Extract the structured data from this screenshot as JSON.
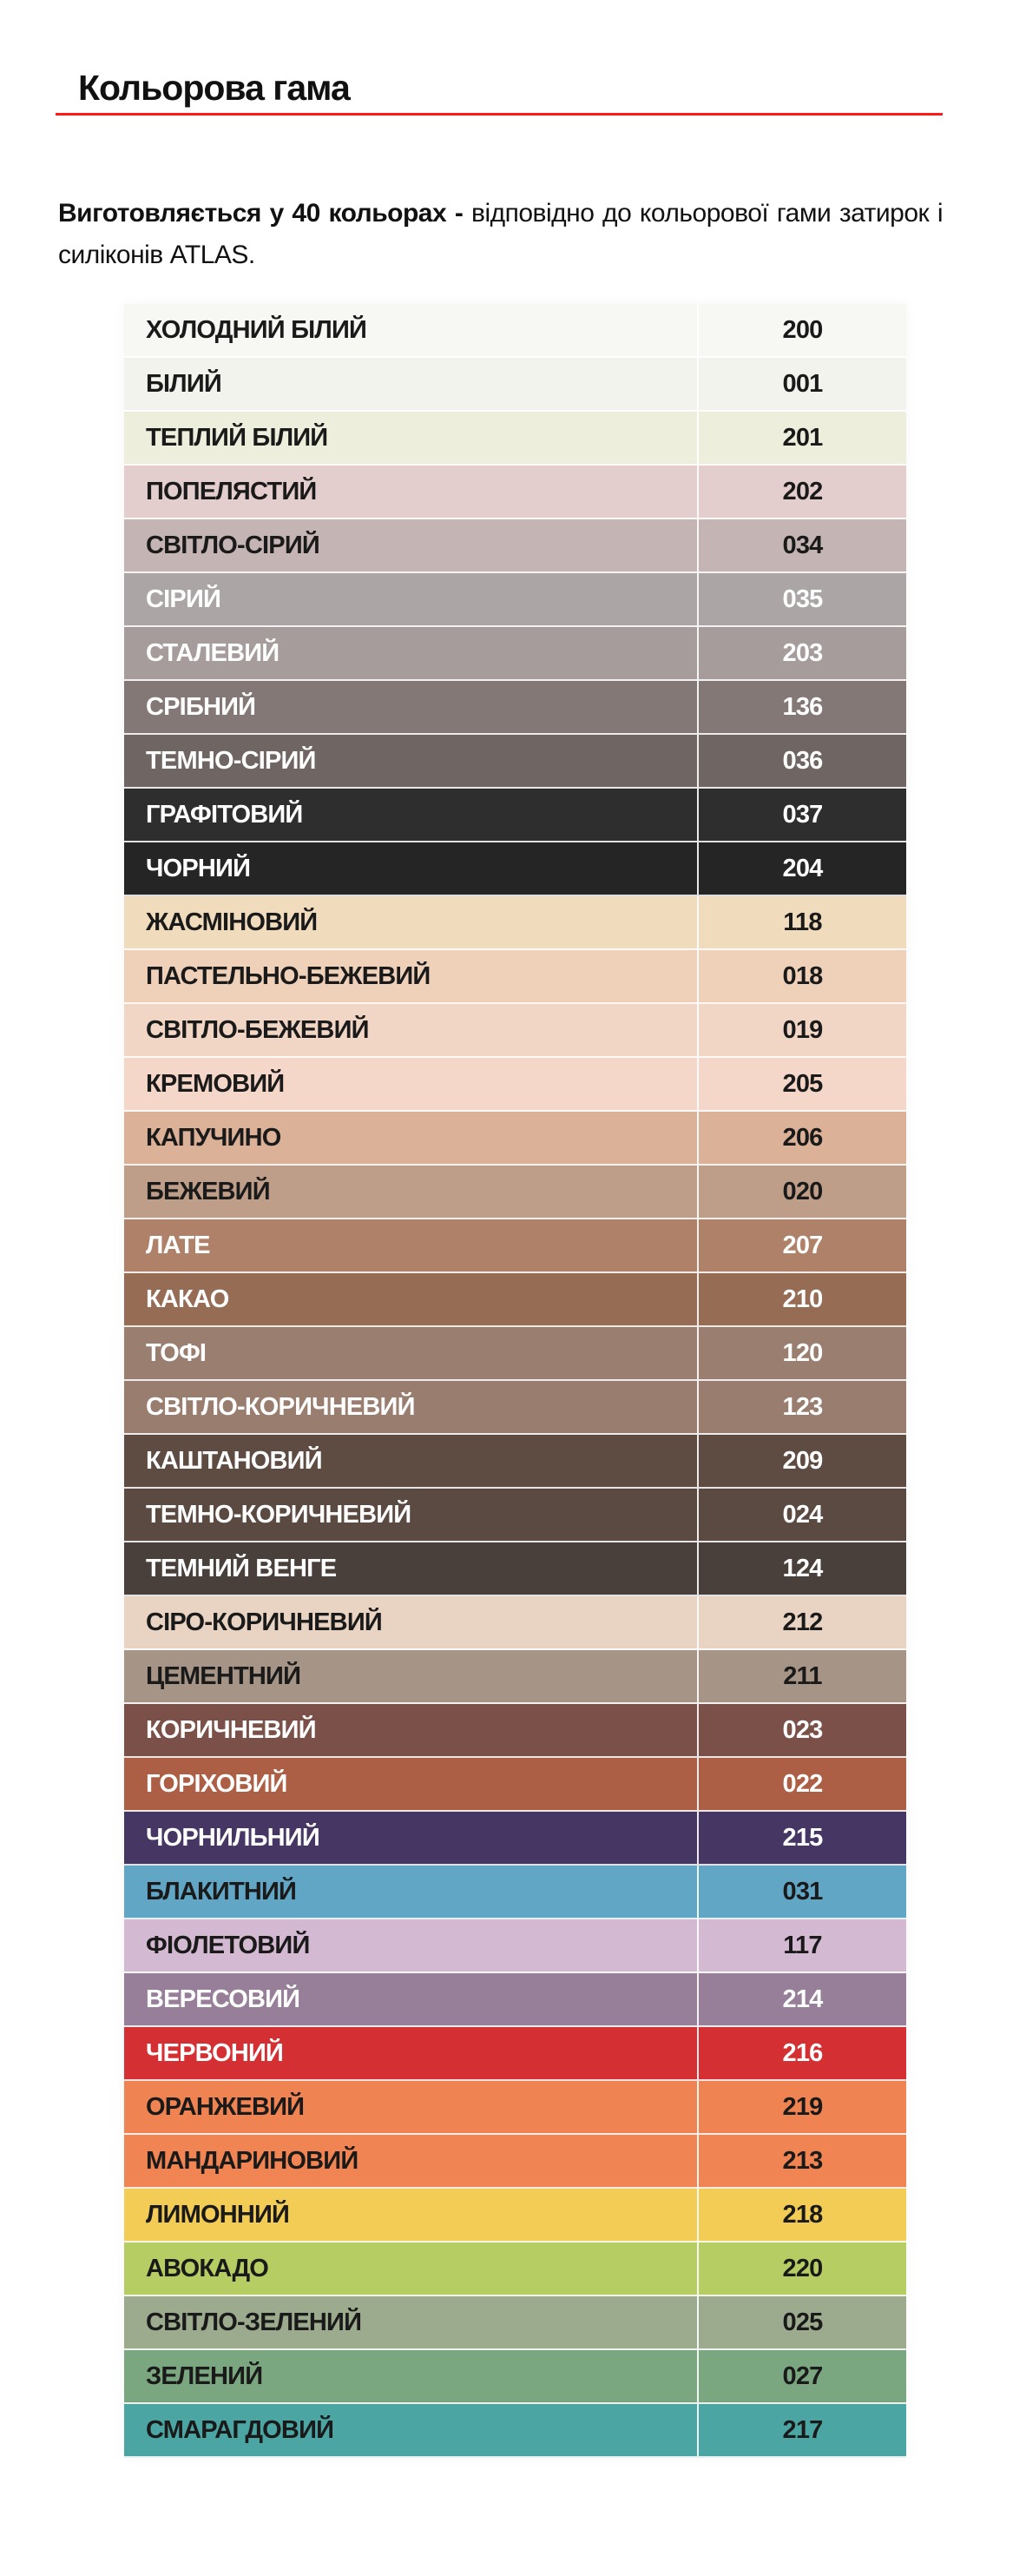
{
  "heading": "Кольорова гама",
  "accent_color": "#ff1a1a",
  "intro": {
    "bold": "Виготовляється у 40  кольорах - ",
    "normal": "відповідно до кольорової гами затирок і силіконів ATLAS."
  },
  "colors": [
    {
      "name": "ХОЛОДНИЙ БІЛИЙ",
      "code": "200",
      "bg": "#f7f7f4",
      "text": "#1a1a1a"
    },
    {
      "name": "БІЛИЙ",
      "code": "001",
      "bg": "#f3f3ee",
      "text": "#1a1a1a"
    },
    {
      "name": "ТЕПЛИЙ БІЛИЙ",
      "code": "201",
      "bg": "#eeeedd",
      "text": "#1a1a1a"
    },
    {
      "name": "ПОПЕЛЯСТИЙ",
      "code": "202",
      "bg": "#e3cdcd",
      "text": "#1a1a1a"
    },
    {
      "name": "СВІТЛО-СІРИЙ",
      "code": "034",
      "bg": "#c4b4b4",
      "text": "#1a1a1a"
    },
    {
      "name": "СІРИЙ",
      "code": "035",
      "bg": "#aba6a5",
      "text": "#ffffff"
    },
    {
      "name": "СТАЛЕВИЙ",
      "code": "203",
      "bg": "#a59c9b",
      "text": "#ffffff"
    },
    {
      "name": "СРІБНИЙ",
      "code": "136",
      "bg": "#837876",
      "text": "#ffffff"
    },
    {
      "name": "ТЕМНО-СІРИЙ",
      "code": "036",
      "bg": "#6f6562",
      "text": "#ffffff"
    },
    {
      "name": "ГРАФІТОВИЙ",
      "code": "037",
      "bg": "#2e2e2e",
      "text": "#ffffff"
    },
    {
      "name": "ЧОРНИЙ",
      "code": "204",
      "bg": "#252525",
      "text": "#ffffff"
    },
    {
      "name": "ЖАСМІНОВИЙ",
      "code": "118",
      "bg": "#f0dcbc",
      "text": "#1a1a1a"
    },
    {
      "name": "ПАСТЕЛЬНО-БЕЖЕВИЙ",
      "code": "018",
      "bg": "#efd1ba",
      "text": "#1a1a1a"
    },
    {
      "name": "СВІТЛО-БЕЖЕВИЙ",
      "code": "019",
      "bg": "#f2d6c5",
      "text": "#1a1a1a"
    },
    {
      "name": "КРЕМОВИЙ",
      "code": "205",
      "bg": "#f4d7c9",
      "text": "#1a1a1a"
    },
    {
      "name": "КАПУЧИНО",
      "code": "206",
      "bg": "#dbb298",
      "text": "#1a1a1a"
    },
    {
      "name": "БЕЖЕВИЙ",
      "code": "020",
      "bg": "#bf9e89",
      "text": "#1a1a1a"
    },
    {
      "name": "ЛАТЕ",
      "code": "207",
      "bg": "#ae8168",
      "text": "#ffffff"
    },
    {
      "name": "КАКАО",
      "code": "210",
      "bg": "#966c55",
      "text": "#ffffff"
    },
    {
      "name": "ТОФІ",
      "code": "120",
      "bg": "#9a7f71",
      "text": "#ffffff"
    },
    {
      "name": "СВІТЛО-КОРИЧНЕВИЙ",
      "code": "123",
      "bg": "#997e70",
      "text": "#ffffff"
    },
    {
      "name": "КАШТАНОВИЙ",
      "code": "209",
      "bg": "#5e4b42",
      "text": "#ffffff"
    },
    {
      "name": "ТЕМНО-КОРИЧНЕВИЙ",
      "code": "024",
      "bg": "#5b4a41",
      "text": "#ffffff"
    },
    {
      "name": "ТЕМНИЙ ВЕНГЕ",
      "code": "124",
      "bg": "#49403c",
      "text": "#ffffff"
    },
    {
      "name": "СІРО-КОРИЧНЕВИЙ",
      "code": "212",
      "bg": "#e9d4c3",
      "text": "#1a1a1a"
    },
    {
      "name": "ЦЕМЕНТНИЙ",
      "code": "211",
      "bg": "#a69486",
      "text": "#1a1a1a"
    },
    {
      "name": "КОРИЧНЕВИЙ",
      "code": "023",
      "bg": "#7a5048",
      "text": "#ffffff"
    },
    {
      "name": "ГОРІХОВИЙ",
      "code": "022",
      "bg": "#ac5f45",
      "text": "#ffffff"
    },
    {
      "name": "ЧОРНИЛЬНИЙ",
      "code": "215",
      "bg": "#463664",
      "text": "#ffffff"
    },
    {
      "name": "БЛАКИТНИЙ",
      "code": "031",
      "bg": "#62a6c5",
      "text": "#1a1a1a"
    },
    {
      "name": "ФІОЛЕТОВИЙ",
      "code": "117",
      "bg": "#d3b9d2",
      "text": "#1a1a1a"
    },
    {
      "name": "ВЕРЕСОВИЙ",
      "code": "214",
      "bg": "#977e99",
      "text": "#ffffff"
    },
    {
      "name": "ЧЕРВОНИЙ",
      "code": "216",
      "bg": "#d43033",
      "text": "#ffffff"
    },
    {
      "name": "ОРАНЖЕВИЙ",
      "code": "219",
      "bg": "#f08352",
      "text": "#1a1a1a"
    },
    {
      "name": "МАНДАРИНОВИЙ",
      "code": "213",
      "bg": "#f08452",
      "text": "#1a1a1a"
    },
    {
      "name": "ЛИМОННИЙ",
      "code": "218",
      "bg": "#f3cc55",
      "text": "#1a1a1a"
    },
    {
      "name": "АВОКАДО",
      "code": "220",
      "bg": "#b5cd62",
      "text": "#1a1a1a"
    },
    {
      "name": "СВІТЛО-ЗЕЛЕНИЙ",
      "code": "025",
      "bg": "#9cab8d",
      "text": "#1a1a1a"
    },
    {
      "name": "ЗЕЛЕНИЙ",
      "code": "027",
      "bg": "#7aa77f",
      "text": "#1a1a1a"
    },
    {
      "name": "СМАРАГДОВИЙ",
      "code": "217",
      "bg": "#4ba6a3",
      "text": "#1a1a1a"
    }
  ]
}
